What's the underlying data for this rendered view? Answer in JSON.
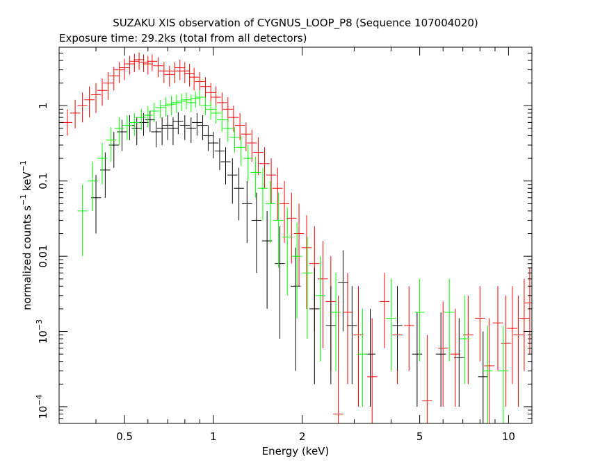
{
  "chart_data": {
    "type": "scatter",
    "title": "SUZAKU XIS observation of CYGNUS_LOOP_P8 (Sequence 107004020)",
    "subtitle": "Exposure time: 29.2ks (total from all detectors)",
    "xlabel": "Energy (keV)",
    "ylabel": {
      "base": "normalized counts s",
      "sup1": "−1",
      "mid": " keV",
      "sup2": "−1"
    },
    "xscale": "log",
    "yscale": "log",
    "xlim": [
      0.3,
      12
    ],
    "ylim": [
      6e-05,
      6
    ],
    "x_ticks": [
      {
        "value": 0.5,
        "label": "0.5"
      },
      {
        "value": 1,
        "label": "1"
      },
      {
        "value": 2,
        "label": "2"
      },
      {
        "value": 5,
        "label": "5"
      },
      {
        "value": 10,
        "label": "10"
      }
    ],
    "y_ticks": [
      {
        "value": 0.0001,
        "base": "10",
        "exp": "−4"
      },
      {
        "value": 0.001,
        "base": "10",
        "exp": "−3"
      },
      {
        "value": 0.01,
        "label": "0.01"
      },
      {
        "value": 0.1,
        "label": "0.1"
      },
      {
        "value": 1,
        "label": "1"
      }
    ],
    "series": [
      {
        "color": "#ff0000",
        "points": [
          [
            0.32,
            0.6,
            0.4,
            0.9
          ],
          [
            0.34,
            0.8,
            0.5,
            1.2
          ],
          [
            0.36,
            1.0,
            0.6,
            1.5
          ],
          [
            0.38,
            1.2,
            0.7,
            1.8
          ],
          [
            0.4,
            1.4,
            0.8,
            2.0
          ],
          [
            0.42,
            1.6,
            1.0,
            2.3
          ],
          [
            0.44,
            2.0,
            1.2,
            2.8
          ],
          [
            0.46,
            2.5,
            1.6,
            3.3
          ],
          [
            0.48,
            3.0,
            2.0,
            3.8
          ],
          [
            0.5,
            3.2,
            2.2,
            4.2
          ],
          [
            0.52,
            3.6,
            2.6,
            4.6
          ],
          [
            0.54,
            3.9,
            2.8,
            4.9
          ],
          [
            0.56,
            4.1,
            3.0,
            5.1
          ],
          [
            0.58,
            3.8,
            2.8,
            4.8
          ],
          [
            0.6,
            3.6,
            2.6,
            4.6
          ],
          [
            0.62,
            3.9,
            2.9,
            4.8
          ],
          [
            0.65,
            3.4,
            2.4,
            4.4
          ],
          [
            0.68,
            2.9,
            2.0,
            3.8
          ],
          [
            0.71,
            2.6,
            1.8,
            3.4
          ],
          [
            0.74,
            2.9,
            2.0,
            3.8
          ],
          [
            0.77,
            3.2,
            2.2,
            4.1
          ],
          [
            0.8,
            2.9,
            2.0,
            3.8
          ],
          [
            0.83,
            2.7,
            1.8,
            3.6
          ],
          [
            0.86,
            2.4,
            1.6,
            3.2
          ],
          [
            0.9,
            2.1,
            1.4,
            2.8
          ],
          [
            0.94,
            1.8,
            1.2,
            2.4
          ],
          [
            0.98,
            1.5,
            1.0,
            2.0
          ],
          [
            1.02,
            1.3,
            0.9,
            1.8
          ],
          [
            1.07,
            1.1,
            0.7,
            1.5
          ],
          [
            1.12,
            0.9,
            0.6,
            1.3
          ],
          [
            1.17,
            0.7,
            0.45,
            1.0
          ],
          [
            1.23,
            0.55,
            0.35,
            0.8
          ],
          [
            1.29,
            0.42,
            0.25,
            0.6
          ],
          [
            1.35,
            0.32,
            0.18,
            0.48
          ],
          [
            1.42,
            0.24,
            0.12,
            0.38
          ],
          [
            1.49,
            0.17,
            0.08,
            0.28
          ],
          [
            1.57,
            0.12,
            0.05,
            0.2
          ],
          [
            1.65,
            0.08,
            0.03,
            0.15
          ],
          [
            1.74,
            0.05,
            0.015,
            0.1
          ],
          [
            1.84,
            0.032,
            0.008,
            0.07
          ],
          [
            1.95,
            0.02,
            0.004,
            0.05
          ],
          [
            2.07,
            0.013,
            0.002,
            0.035
          ],
          [
            2.2,
            0.008,
            0.001,
            0.025
          ],
          [
            2.35,
            0.005,
            0.0006,
            0.016
          ],
          [
            2.5,
            0.0025,
            0.0003,
            0.01
          ],
          [
            2.65,
            8e-05,
            6e-05,
            0.003
          ],
          [
            2.85,
            0.0018,
            0.0002,
            0.006
          ],
          [
            3.1,
            0.0009,
            0.0001,
            0.004
          ],
          [
            3.45,
            0.00025,
            6e-05,
            0.0015
          ],
          [
            3.8,
            0.0025,
            0.0006,
            0.006
          ],
          [
            4.2,
            0.0009,
            0.0002,
            0.0035
          ],
          [
            4.6,
            0.0012,
            0.0003,
            0.004
          ],
          [
            5.3,
            0.00012,
            6e-05,
            0.0009
          ],
          [
            6.0,
            0.0006,
            0.0001,
            0.0025
          ],
          [
            6.6,
            0.0005,
            0.0001,
            0.002
          ],
          [
            7.3,
            0.0009,
            0.0002,
            0.003
          ],
          [
            8.0,
            0.0015,
            0.0004,
            0.004
          ],
          [
            8.6,
            0.00035,
            6e-05,
            0.0015
          ],
          [
            9.2,
            0.0013,
            0.0003,
            0.004
          ],
          [
            9.8,
            0.0007,
            0.0001,
            0.003
          ],
          [
            10.3,
            0.0011,
            0.0002,
            0.004
          ],
          [
            10.8,
            0.0009,
            0.0001,
            0.003
          ],
          [
            11.3,
            0.0015,
            0.0003,
            0.005
          ],
          [
            11.8,
            0.0024,
            0.0005,
            0.007
          ]
        ]
      },
      {
        "color": "#000000",
        "points": [
          [
            0.4,
            0.06,
            0.02,
            0.12
          ],
          [
            0.43,
            0.14,
            0.06,
            0.24
          ],
          [
            0.46,
            0.3,
            0.15,
            0.45
          ],
          [
            0.49,
            0.45,
            0.25,
            0.65
          ],
          [
            0.52,
            0.55,
            0.35,
            0.75
          ],
          [
            0.55,
            0.5,
            0.3,
            0.7
          ],
          [
            0.58,
            0.6,
            0.4,
            0.8
          ],
          [
            0.61,
            0.65,
            0.45,
            0.85
          ],
          [
            0.64,
            0.45,
            0.28,
            0.62
          ],
          [
            0.67,
            0.5,
            0.3,
            0.7
          ],
          [
            0.7,
            0.55,
            0.35,
            0.75
          ],
          [
            0.73,
            0.5,
            0.3,
            0.7
          ],
          [
            0.76,
            0.62,
            0.42,
            0.82
          ],
          [
            0.8,
            0.55,
            0.35,
            0.75
          ],
          [
            0.84,
            0.5,
            0.32,
            0.7
          ],
          [
            0.88,
            0.6,
            0.4,
            0.8
          ],
          [
            0.92,
            0.55,
            0.35,
            0.75
          ],
          [
            0.96,
            0.4,
            0.25,
            0.55
          ],
          [
            1.0,
            0.32,
            0.2,
            0.45
          ],
          [
            1.05,
            0.25,
            0.14,
            0.37
          ],
          [
            1.1,
            0.18,
            0.09,
            0.28
          ],
          [
            1.16,
            0.12,
            0.05,
            0.2
          ],
          [
            1.22,
            0.08,
            0.03,
            0.15
          ],
          [
            1.3,
            0.05,
            0.015,
            0.1
          ],
          [
            1.4,
            0.03,
            0.006,
            0.07
          ],
          [
            1.52,
            0.016,
            0.002,
            0.04
          ],
          [
            1.68,
            0.008,
            0.0008,
            0.025
          ],
          [
            1.9,
            0.004,
            0.0003,
            0.013
          ],
          [
            2.2,
            0.002,
            0.0002,
            0.007
          ],
          [
            2.5,
            0.0012,
            0.0002,
            0.004
          ],
          [
            2.75,
            0.0045,
            0.001,
            0.012
          ],
          [
            2.95,
            0.0012,
            0.0002,
            0.004
          ],
          [
            3.4,
            0.0005,
            0.0001,
            0.002
          ],
          [
            4.2,
            0.0012,
            0.0003,
            0.004
          ],
          [
            4.9,
            0.0005,
            0.0001,
            0.0018
          ],
          [
            5.9,
            0.0005,
            0.0001,
            0.0018
          ],
          [
            6.8,
            0.00045,
            0.0001,
            0.0015
          ],
          [
            8.2,
            0.00025,
            6e-05,
            0.001
          ]
        ]
      },
      {
        "color": "#00ff00",
        "points": [
          [
            0.36,
            0.04,
            0.01,
            0.09
          ],
          [
            0.39,
            0.1,
            0.04,
            0.18
          ],
          [
            0.42,
            0.2,
            0.09,
            0.32
          ],
          [
            0.45,
            0.35,
            0.18,
            0.52
          ],
          [
            0.48,
            0.5,
            0.3,
            0.7
          ],
          [
            0.51,
            0.55,
            0.35,
            0.75
          ],
          [
            0.54,
            0.6,
            0.4,
            0.8
          ],
          [
            0.57,
            0.7,
            0.48,
            0.9
          ],
          [
            0.6,
            0.75,
            0.52,
            0.98
          ],
          [
            0.63,
            0.85,
            0.6,
            1.1
          ],
          [
            0.66,
            0.95,
            0.68,
            1.2
          ],
          [
            0.69,
            1.0,
            0.72,
            1.3
          ],
          [
            0.72,
            1.05,
            0.75,
            1.35
          ],
          [
            0.75,
            1.1,
            0.8,
            1.4
          ],
          [
            0.78,
            1.15,
            0.85,
            1.45
          ],
          [
            0.81,
            1.2,
            0.9,
            1.5
          ],
          [
            0.84,
            1.1,
            0.82,
            1.4
          ],
          [
            0.87,
            1.25,
            0.95,
            1.55
          ],
          [
            0.9,
            1.3,
            1.0,
            1.6
          ],
          [
            0.94,
            1.0,
            0.75,
            1.3
          ],
          [
            0.98,
            0.9,
            0.65,
            1.15
          ],
          [
            1.02,
            0.8,
            0.58,
            1.02
          ],
          [
            1.07,
            0.65,
            0.45,
            0.85
          ],
          [
            1.12,
            0.5,
            0.33,
            0.68
          ],
          [
            1.18,
            0.38,
            0.24,
            0.52
          ],
          [
            1.24,
            0.28,
            0.16,
            0.4
          ],
          [
            1.31,
            0.2,
            0.1,
            0.3
          ],
          [
            1.39,
            0.13,
            0.06,
            0.21
          ],
          [
            1.47,
            0.08,
            0.03,
            0.15
          ],
          [
            1.56,
            0.05,
            0.015,
            0.1
          ],
          [
            1.66,
            0.03,
            0.007,
            0.07
          ],
          [
            1.78,
            0.018,
            0.003,
            0.045
          ],
          [
            1.92,
            0.01,
            0.0015,
            0.028
          ],
          [
            2.08,
            0.006,
            0.0008,
            0.018
          ],
          [
            2.3,
            0.003,
            0.0004,
            0.01
          ],
          [
            2.6,
            0.0018,
            0.0003,
            0.006
          ],
          [
            3.2,
            0.0005,
            0.0001,
            0.002
          ],
          [
            4.0,
            0.0015,
            0.0003,
            0.005
          ],
          [
            5.0,
            0.0018,
            0.0004,
            0.005
          ],
          [
            6.3,
            0.0018,
            0.0004,
            0.005
          ],
          [
            7.1,
            0.0008,
            0.0002,
            0.003
          ],
          [
            8.5,
            0.0003,
            6e-05,
            0.0012
          ],
          [
            9.6,
            0.0003,
            6e-05,
            0.0012
          ]
        ]
      }
    ],
    "grid": false
  }
}
